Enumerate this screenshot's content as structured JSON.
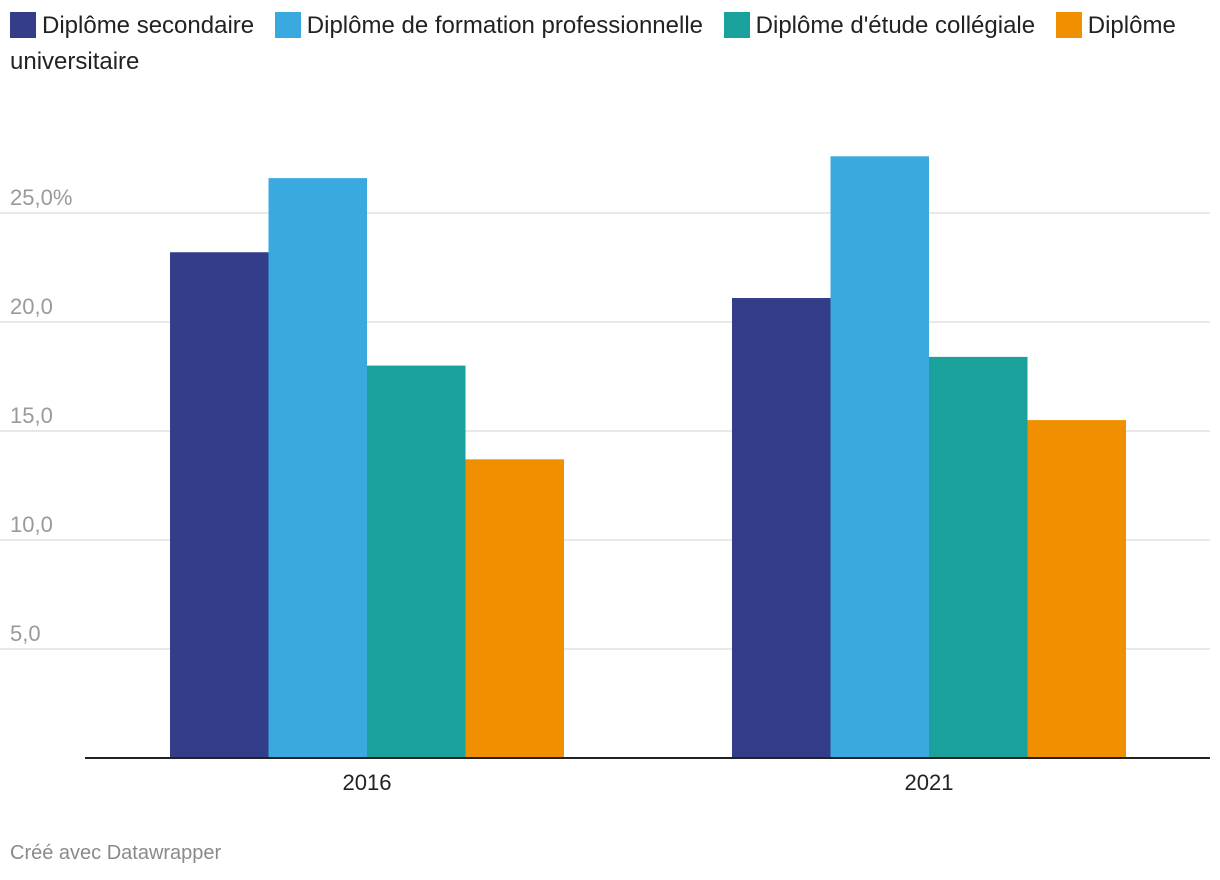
{
  "legend": [
    {
      "label": "Diplôme secondaire",
      "color": "#333d8a"
    },
    {
      "label": "Diplôme de formation professionnelle",
      "color": "#39a9e0"
    },
    {
      "label": "Diplôme d'étude collégiale",
      "color": "#1aa19c"
    },
    {
      "label": "Diplôme universitaire",
      "color": "#f08f00"
    }
  ],
  "footer": {
    "credit": "Créé avec Datawrapper"
  },
  "chart_data": {
    "type": "bar",
    "title": "",
    "xlabel": "",
    "ylabel": "",
    "categories": [
      "2016",
      "2021"
    ],
    "series": [
      {
        "name": "Diplôme secondaire",
        "values": [
          23.2,
          21.1
        ],
        "color": "#333d8a"
      },
      {
        "name": "Diplôme de formation professionnelle",
        "values": [
          26.6,
          27.6
        ],
        "color": "#39a9e0"
      },
      {
        "name": "Diplôme d'étude collégiale",
        "values": [
          18.0,
          18.4
        ],
        "color": "#1aa19c"
      },
      {
        "name": "Diplôme universitaire",
        "values": [
          13.7,
          15.5
        ],
        "color": "#f08f00"
      }
    ],
    "yticks": [
      5,
      10,
      15,
      20,
      25
    ],
    "ytick_labels": [
      "5,0",
      "10,0",
      "15,0",
      "20,0",
      "25,0%"
    ],
    "ylim": [
      0,
      27.6
    ],
    "grid": true,
    "legend_position": "top-left"
  }
}
